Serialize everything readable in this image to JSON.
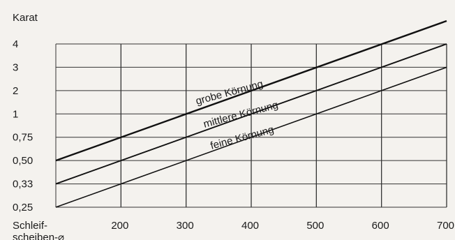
{
  "chart_data": {
    "type": "line",
    "title": "",
    "ylabel": "Karat",
    "xlabel": "Schleif-\nscheiben-⌀",
    "x_ticks": [
      200,
      300,
      400,
      500,
      600,
      700
    ],
    "y_ticks": [
      "0,25",
      "0,33",
      "0,50",
      "0,75",
      "1",
      "2",
      "3",
      "4"
    ],
    "xlim": [
      100,
      700
    ],
    "y_scale": "categorical",
    "grid": true,
    "legend": "inline labels on lines",
    "series": [
      {
        "name": "grobe Körnung",
        "points": [
          {
            "x": 100,
            "y": "0,50"
          },
          {
            "x": 700,
            "y": "4 +"
          }
        ]
      },
      {
        "name": "mittlere Körnung",
        "points": [
          {
            "x": 100,
            "y": "0,33"
          },
          {
            "x": 700,
            "y": "4"
          }
        ]
      },
      {
        "name": "feine Körnung",
        "points": [
          {
            "x": 100,
            "y": "0,25"
          },
          {
            "x": 700,
            "y": "3"
          }
        ]
      }
    ]
  }
}
